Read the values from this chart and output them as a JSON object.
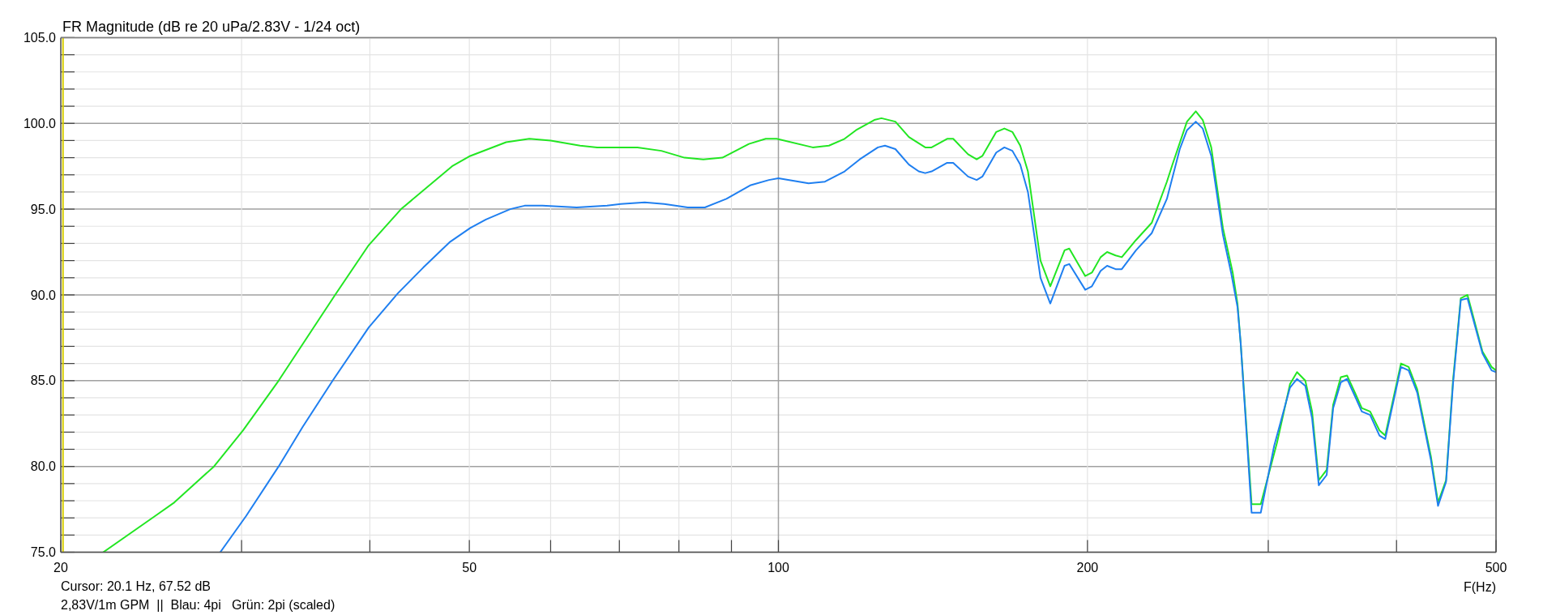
{
  "chart_data": {
    "type": "line",
    "title": "FR Magnitude (dB re 20 uPa/2.83V - 1/24 oct)",
    "xlabel": "F(Hz)",
    "annotations": [
      "Cursor: 20.1 Hz, 67.52 dB",
      "2,83V/1m GPM  ||  Blau: 4pi   Grün: 2pi (scaled)"
    ],
    "log": "x",
    "grid": true,
    "xlim": [
      20,
      500
    ],
    "ylim": [
      75,
      105
    ],
    "xticks": [
      20,
      {
        "value": 30,
        "label": null
      },
      {
        "value": 40,
        "label": null
      },
      50,
      {
        "value": 60,
        "label": null
      },
      {
        "value": 70,
        "label": null
      },
      {
        "value": 80,
        "label": null
      },
      {
        "value": 90,
        "label": null
      },
      100,
      200,
      {
        "value": 300,
        "label": null
      },
      {
        "value": 400,
        "label": null
      },
      500
    ],
    "yticks": [
      {
        "value": 75,
        "label": "75.0"
      },
      {
        "value": 76,
        "label": null
      },
      {
        "value": 77,
        "label": null
      },
      {
        "value": 78,
        "label": null
      },
      {
        "value": 79,
        "label": null
      },
      {
        "value": 80,
        "label": "80.0"
      },
      {
        "value": 81,
        "label": null
      },
      {
        "value": 82,
        "label": null
      },
      {
        "value": 83,
        "label": null
      },
      {
        "value": 84,
        "label": null
      },
      {
        "value": 85,
        "label": "85.0"
      },
      {
        "value": 86,
        "label": null
      },
      {
        "value": 87,
        "label": null
      },
      {
        "value": 88,
        "label": null
      },
      {
        "value": 89,
        "label": null
      },
      {
        "value": 90,
        "label": "90.0"
      },
      {
        "value": 91,
        "label": null
      },
      {
        "value": 92,
        "label": null
      },
      {
        "value": 93,
        "label": null
      },
      {
        "value": 94,
        "label": null
      },
      {
        "value": 95,
        "label": "95.0"
      },
      {
        "value": 96,
        "label": null
      },
      {
        "value": 97,
        "label": null
      },
      {
        "value": 98,
        "label": null
      },
      {
        "value": 99,
        "label": null
      },
      {
        "value": 100,
        "label": "100.0"
      },
      {
        "value": 101,
        "label": null
      },
      {
        "value": 102,
        "label": null
      },
      {
        "value": 103,
        "label": null
      },
      {
        "value": 104,
        "label": null
      },
      {
        "value": 105,
        "label": "105.0"
      }
    ],
    "ref_lines": [
      {
        "axis": "x",
        "value": 20.1,
        "color": "#d6cc00"
      }
    ],
    "series": [
      {
        "color": "#22e622",
        "x": [
          22.0,
          24.7,
          25.8,
          28.2,
          30.1,
          32.6,
          37.0,
          39.9,
          42.9,
          48.1,
          50.1,
          54.3,
          57.2,
          60.0,
          64.1,
          66.6,
          72.9,
          76.9,
          81.0,
          84.5,
          88.2,
          93.6,
          97.2,
          99.6,
          108,
          112,
          116,
          119,
          124,
          126,
          130,
          134,
          139,
          141,
          146,
          148,
          153,
          156,
          158,
          163,
          166,
          169,
          172,
          175,
          180,
          184,
          190,
          192,
          199,
          202,
          206,
          209,
          213,
          216,
          223,
          231,
          239,
          242,
          250,
          255,
          259,
          264,
          271,
          277,
          280,
          282,
          285,
          289,
          295,
          306,
          315,
          320,
          326,
          331,
          336,
          342,
          347,
          353,
          358,
          365,
          370,
          377,
          385,
          390,
          404,
          411,
          419,
          432,
          439,
          447,
          454,
          462,
          469,
          485,
          495,
          500
        ],
        "values": [
          75.0,
          77.1,
          77.9,
          80.0,
          82.1,
          85.0,
          90.0,
          92.9,
          95.0,
          97.5,
          98.1,
          98.9,
          99.1,
          99.0,
          98.7,
          98.6,
          98.6,
          98.4,
          98.0,
          97.9,
          98.0,
          98.8,
          99.1,
          99.1,
          98.6,
          98.7,
          99.1,
          99.6,
          100.2,
          100.3,
          100.1,
          99.2,
          98.6,
          98.6,
          99.1,
          99.1,
          98.2,
          97.9,
          98.1,
          99.5,
          99.7,
          99.5,
          98.7,
          97.2,
          92.0,
          90.5,
          92.6,
          92.7,
          91.1,
          91.3,
          92.2,
          92.5,
          92.3,
          92.2,
          93.2,
          94.2,
          96.6,
          97.6,
          100.1,
          100.7,
          100.2,
          98.6,
          93.9,
          91.3,
          89.5,
          87.2,
          83.2,
          77.8,
          77.8,
          81.4,
          84.8,
          85.5,
          85.0,
          83.2,
          79.2,
          79.8,
          83.6,
          85.2,
          85.3,
          84.2,
          83.4,
          83.2,
          82.1,
          81.8,
          86.0,
          85.8,
          84.5,
          80.6,
          77.9,
          79.2,
          85.0,
          89.8,
          90.0,
          86.7,
          85.8,
          85.6
        ]
      },
      {
        "color": "#1f7ff0",
        "x": [
          28.6,
          30.3,
          32.6,
          34.4,
          36.8,
          39.9,
          42.6,
          45.1,
          47.9,
          50.1,
          51.9,
          54.8,
          56.6,
          58.9,
          63.6,
          68.1,
          70.2,
          74.1,
          77.4,
          81.6,
          84.8,
          89.0,
          94.0,
          97.9,
          100,
          107,
          111,
          116,
          120,
          125,
          127,
          130,
          134,
          137,
          139,
          141,
          146,
          148,
          153,
          156,
          158,
          163,
          166,
          169,
          172,
          175,
          180,
          184,
          190,
          192,
          199,
          202,
          206,
          209,
          213,
          216,
          223,
          231,
          239,
          246,
          250,
          255,
          259,
          264,
          271,
          276,
          280,
          282,
          285,
          289,
          295,
          304,
          315,
          320,
          326,
          331,
          336,
          342,
          347,
          353,
          358,
          365,
          370,
          377,
          385,
          390,
          404,
          411,
          419,
          432,
          439,
          447,
          454,
          462,
          469,
          485,
          495,
          500
        ],
        "values": [
          75.0,
          77.1,
          80.0,
          82.3,
          85.0,
          88.1,
          90.1,
          91.6,
          93.1,
          93.9,
          94.4,
          95.0,
          95.2,
          95.2,
          95.1,
          95.2,
          95.3,
          95.4,
          95.3,
          95.1,
          95.1,
          95.6,
          96.4,
          96.7,
          96.8,
          96.5,
          96.6,
          97.2,
          97.9,
          98.6,
          98.7,
          98.5,
          97.6,
          97.2,
          97.1,
          97.2,
          97.7,
          97.7,
          96.9,
          96.7,
          96.9,
          98.3,
          98.6,
          98.4,
          97.6,
          96.0,
          91.0,
          89.5,
          91.7,
          91.8,
          90.3,
          90.5,
          91.4,
          91.7,
          91.5,
          91.5,
          92.6,
          93.6,
          95.6,
          98.5,
          99.6,
          100.1,
          99.7,
          98.1,
          93.5,
          91.3,
          89.3,
          87.2,
          83.0,
          77.3,
          77.3,
          81.2,
          84.6,
          85.1,
          84.7,
          82.8,
          78.9,
          79.5,
          83.4,
          84.9,
          85.1,
          84.0,
          83.2,
          83.0,
          81.8,
          81.6,
          85.8,
          85.6,
          84.3,
          80.4,
          77.7,
          79.1,
          84.8,
          89.7,
          89.8,
          86.6,
          85.6,
          85.5
        ]
      }
    ]
  }
}
